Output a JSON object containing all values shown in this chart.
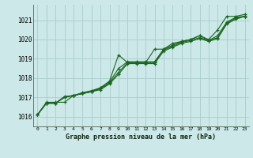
{
  "title": "Graphe pression niveau de la mer (hPa)",
  "bg_color": "#cce8e8",
  "grid_color": "#aacccc",
  "line_color": "#1a6620",
  "marker_color": "#1a6620",
  "xlim": [
    -0.5,
    23.5
  ],
  "ylim": [
    1015.5,
    1021.8
  ],
  "yticks": [
    1016,
    1017,
    1018,
    1019,
    1020,
    1021
  ],
  "xticks": [
    0,
    1,
    2,
    3,
    4,
    5,
    6,
    7,
    8,
    9,
    10,
    11,
    12,
    13,
    14,
    15,
    16,
    17,
    18,
    19,
    20,
    21,
    22,
    23
  ],
  "series": [
    [
      1016.1,
      1016.75,
      1016.75,
      1016.75,
      1017.1,
      1017.2,
      1017.3,
      1017.5,
      1017.85,
      1019.2,
      1018.8,
      1018.8,
      1018.8,
      1019.5,
      1019.5,
      1019.8,
      1019.9,
      1020.0,
      1020.2,
      1020.0,
      1020.5,
      1021.2,
      1021.2,
      1021.3
    ],
    [
      1016.1,
      1016.7,
      1016.7,
      1017.05,
      1017.1,
      1017.25,
      1017.35,
      1017.5,
      1017.8,
      1018.5,
      1018.85,
      1018.85,
      1018.85,
      1018.85,
      1019.5,
      1019.7,
      1019.9,
      1020.0,
      1020.2,
      1019.95,
      1020.2,
      1020.9,
      1021.15,
      1021.2
    ],
    [
      1016.1,
      1016.7,
      1016.7,
      1017.0,
      1017.1,
      1017.2,
      1017.3,
      1017.45,
      1017.75,
      1018.3,
      1018.8,
      1018.8,
      1018.8,
      1018.8,
      1019.45,
      1019.65,
      1019.85,
      1019.95,
      1020.1,
      1019.95,
      1020.1,
      1020.85,
      1021.1,
      1021.2
    ],
    [
      1016.1,
      1016.7,
      1016.7,
      1017.0,
      1017.1,
      1017.2,
      1017.3,
      1017.4,
      1017.7,
      1018.2,
      1018.75,
      1018.75,
      1018.75,
      1018.75,
      1019.4,
      1019.6,
      1019.8,
      1019.9,
      1020.05,
      1019.9,
      1020.05,
      1020.8,
      1021.05,
      1021.2
    ]
  ]
}
